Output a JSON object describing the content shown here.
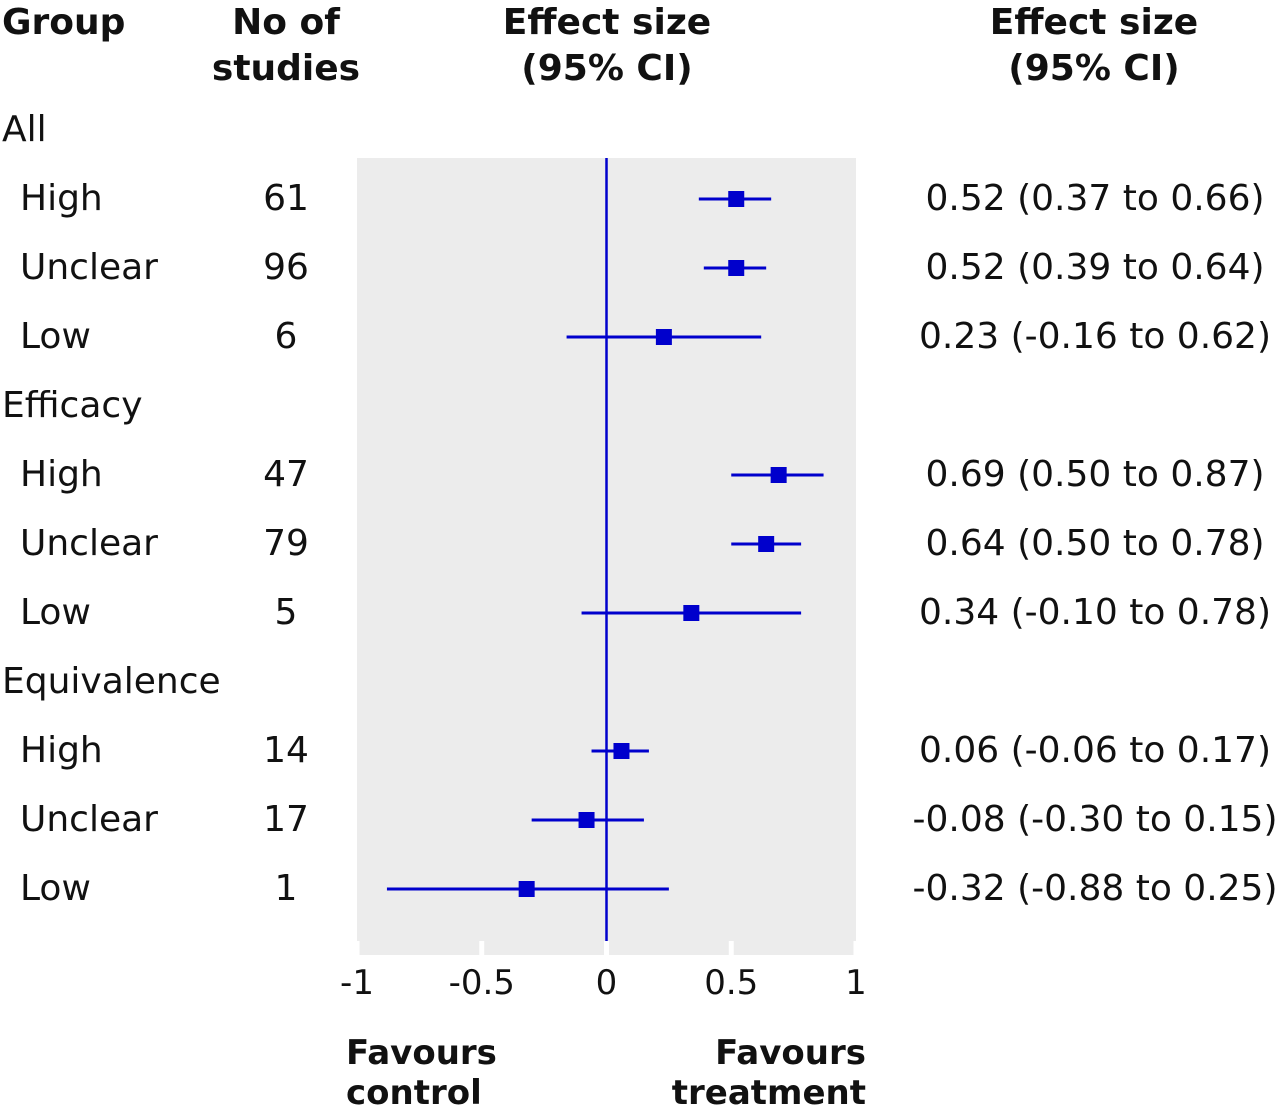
{
  "headers": {
    "group": "Group",
    "n_line1": "No of",
    "n_line2": "studies",
    "es_line1": "Effect size",
    "es_line2": "(95% CI)",
    "es2_line1": "Effect size",
    "es2_line2": "(95% CI)"
  },
  "colors": {
    "marker": "#0000cc",
    "panel": "#ececec",
    "text": "#111111"
  },
  "chart_data": {
    "type": "forest",
    "xlim": [
      -1,
      1
    ],
    "x_ticks": [
      "-1",
      "-0.5",
      "0",
      "0.5",
      "1"
    ],
    "reference_line": 0,
    "favours_left": {
      "line1": "Favours",
      "line2": "control"
    },
    "favours_right": {
      "line1": "Favours",
      "line2": "treatment"
    },
    "groups": [
      {
        "name": "All",
        "rows": [
          {
            "label": "High",
            "n": "61",
            "es": 0.52,
            "lo": 0.37,
            "hi": 0.66,
            "text": "0.52 (0.37 to 0.66)"
          },
          {
            "label": "Unclear",
            "n": "96",
            "es": 0.52,
            "lo": 0.39,
            "hi": 0.64,
            "text": "0.52 (0.39 to 0.64)"
          },
          {
            "label": "Low",
            "n": "6",
            "es": 0.23,
            "lo": -0.16,
            "hi": 0.62,
            "text": "0.23 (-0.16 to 0.62)"
          }
        ]
      },
      {
        "name": "Efficacy",
        "rows": [
          {
            "label": "High",
            "n": "47",
            "es": 0.69,
            "lo": 0.5,
            "hi": 0.87,
            "text": "0.69 (0.50 to 0.87)"
          },
          {
            "label": "Unclear",
            "n": "79",
            "es": 0.64,
            "lo": 0.5,
            "hi": 0.78,
            "text": "0.64 (0.50 to 0.78)"
          },
          {
            "label": "Low",
            "n": "5",
            "es": 0.34,
            "lo": -0.1,
            "hi": 0.78,
            "text": "0.34 (-0.10 to 0.78)"
          }
        ]
      },
      {
        "name": "Equivalence",
        "rows": [
          {
            "label": "High",
            "n": "14",
            "es": 0.06,
            "lo": -0.06,
            "hi": 0.17,
            "text": "0.06 (-0.06 to 0.17)"
          },
          {
            "label": "Unclear",
            "n": "17",
            "es": -0.08,
            "lo": -0.3,
            "hi": 0.15,
            "text": "-0.08 (-0.30 to 0.15)"
          },
          {
            "label": "Low",
            "n": "1",
            "es": -0.32,
            "lo": -0.88,
            "hi": 0.25,
            "text": "-0.32 (-0.88 to 0.25)"
          }
        ]
      }
    ]
  }
}
